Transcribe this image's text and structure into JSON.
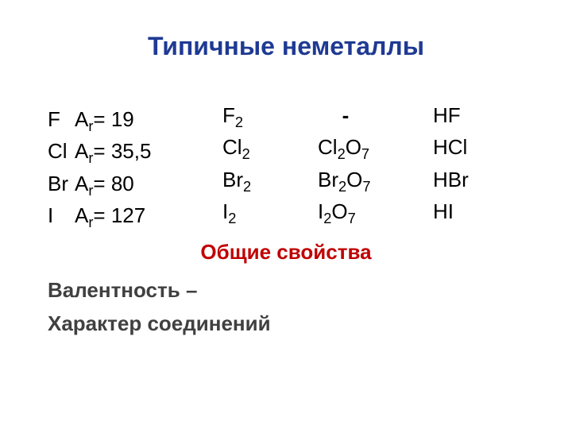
{
  "title": {
    "text": "Типичные неметаллы",
    "color": "#1f3a93",
    "fontsize": 32
  },
  "body_fontsize": 26,
  "text_color": "#000000",
  "atomic_mass": {
    "label_base": "A",
    "label_sub": "r",
    "rows": [
      {
        "symbol": "F",
        "value": "19"
      },
      {
        "symbol": "Cl",
        "value": "35,5"
      },
      {
        "symbol": "Br",
        "value": "80"
      },
      {
        "symbol": "I",
        "value": "127"
      }
    ]
  },
  "molecules": {
    "rows": [
      {
        "base": "F",
        "sub": "2"
      },
      {
        "base": "Cl",
        "sub": "2"
      },
      {
        "base": "Br",
        "sub": "2"
      },
      {
        "base": "I",
        "sub": "2"
      }
    ]
  },
  "oxides": {
    "first_is_dash": true,
    "dash": "-",
    "rows": [
      {
        "b1": "Cl",
        "s1": "2",
        "b2": "O",
        "s2": "7"
      },
      {
        "b1": "Br",
        "s1": "2",
        "b2": "O",
        "s2": "7"
      },
      {
        "b1": "I",
        "s1": "2",
        "b2": "O",
        "s2": "7"
      }
    ]
  },
  "hydrides": {
    "rows": [
      {
        "text": "HF"
      },
      {
        "text": "HCl"
      },
      {
        "text": "HBr"
      },
      {
        "text": "HI"
      }
    ]
  },
  "subheading": {
    "text": "Общие свойства",
    "color": "#c00000",
    "fontsize": 26
  },
  "properties": {
    "line1": "Валентность –",
    "line2": "Характер соединений",
    "color": "#404040",
    "fontsize": 26
  }
}
